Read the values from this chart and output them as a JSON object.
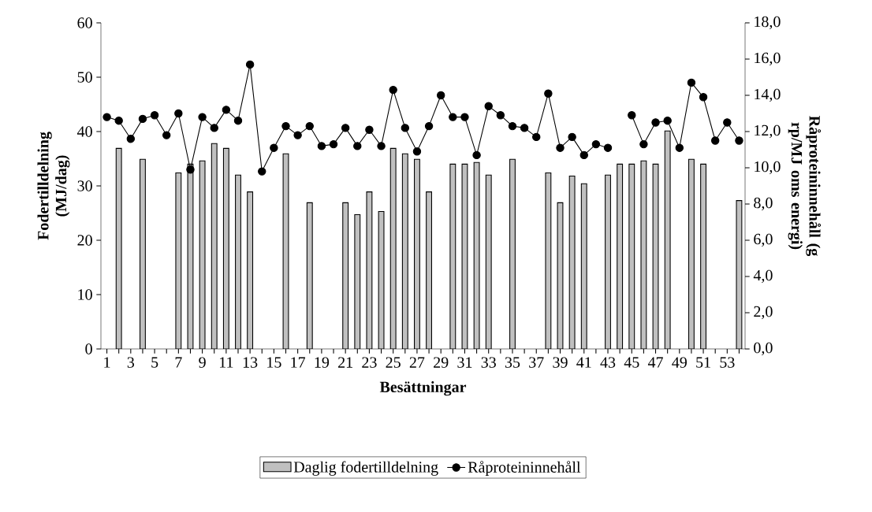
{
  "chart_data": {
    "type": "bar",
    "xlabel": "Besättningar",
    "ylabel": "Fodertilldelning (MJ/dag)",
    "y2label": "Råproteininnehåll (g rp/MJ oms energi)",
    "categories": [
      "1",
      null,
      "3",
      null,
      "5",
      null,
      "7",
      null,
      "9",
      null,
      "11",
      null,
      "13",
      null,
      "15",
      null,
      "17",
      null,
      "19",
      null,
      "21",
      null,
      "23",
      null,
      "25",
      null,
      "27",
      null,
      "29",
      null,
      "31",
      null,
      "33",
      null,
      "35",
      null,
      "37",
      null,
      "39",
      null,
      "41",
      null,
      "43",
      null,
      "45",
      null,
      "47",
      null,
      "49",
      null,
      "51",
      null,
      "53",
      null
    ],
    "series": [
      {
        "name": "Daglig fodertilldelning",
        "color": "#c0c0c0",
        "values": [
          null,
          36.9,
          null,
          34.9,
          null,
          null,
          32.4,
          34,
          34.6,
          37.8,
          36.9,
          32,
          28.9,
          null,
          null,
          35.9,
          null,
          26.9,
          null,
          null,
          26.9,
          24.7,
          28.9,
          25.3,
          36.9,
          35.9,
          34.9,
          28.9,
          null,
          34,
          34,
          34.3,
          32,
          null,
          34.9,
          null,
          null,
          32.4,
          26.9,
          31.8,
          30.4,
          null,
          32,
          34,
          34,
          34.6,
          34,
          40.1,
          null,
          34.9,
          34,
          null,
          null,
          27.3
        ]
      },
      {
        "name": "Råproteininnehåll",
        "type": "line",
        "axis": "y2",
        "color": "#000000",
        "marker": "circle",
        "values": [
          12.8,
          12.6,
          11.6,
          12.7,
          12.9,
          11.8,
          13,
          9.9,
          12.8,
          12.2,
          13.2,
          12.6,
          15.7,
          9.8,
          11.1,
          12.3,
          11.8,
          12.3,
          11.2,
          11.3,
          12.2,
          11.2,
          12.1,
          11.2,
          14.3,
          12.2,
          10.9,
          12.3,
          14,
          12.8,
          12.8,
          10.7,
          13.4,
          12.9,
          12.3,
          12.2,
          11.7,
          14.1,
          11.1,
          11.7,
          10.7,
          11.3,
          11.1,
          null,
          12.9,
          11.3,
          12.5,
          12.6,
          11.1,
          14.7,
          13.9,
          11.5,
          12.5,
          11.5
        ]
      }
    ],
    "ylim": [
      0,
      60
    ],
    "yticks": [
      0,
      10,
      20,
      30,
      40,
      50,
      60
    ],
    "y2lim": [
      0,
      18
    ],
    "y2ticks": [
      {
        "value": 0,
        "label": "0,0"
      },
      {
        "value": 2,
        "label": "2,0"
      },
      {
        "value": 4,
        "label": "4,0"
      },
      {
        "value": 6,
        "label": "6,0"
      },
      {
        "value": 8,
        "label": "8,0"
      },
      {
        "value": 10,
        "label": "10,0"
      },
      {
        "value": 12,
        "label": "12,0"
      },
      {
        "value": 14,
        "label": "14,0"
      },
      {
        "value": 16,
        "label": "16,0"
      },
      {
        "value": 18,
        "label": "18,0"
      }
    ],
    "legend": "bottom",
    "grid": false
  }
}
